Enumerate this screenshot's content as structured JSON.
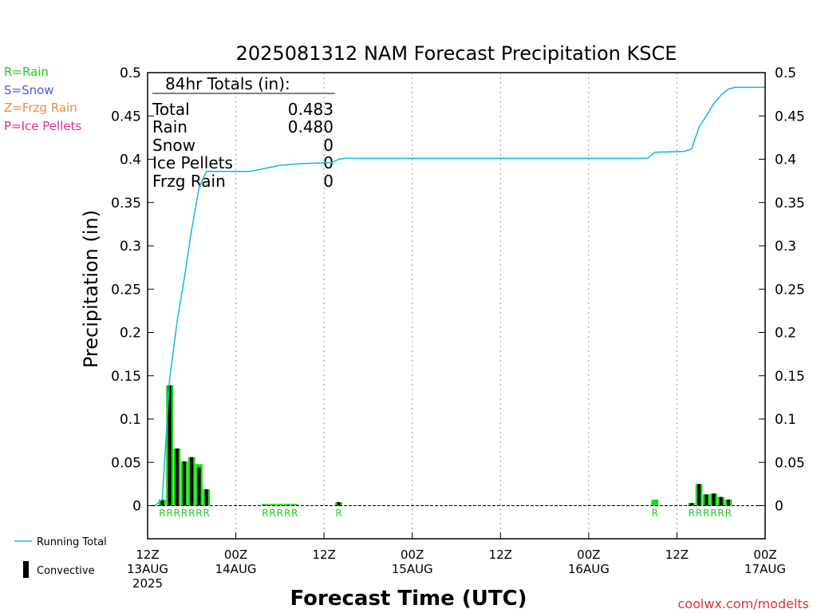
{
  "chart_data": {
    "type": "bar",
    "title": "2025081312 NAM Forecast Precipitation KSCE",
    "ylabel": "Precipitation  (in)",
    "xlabel": "Forecast Time (UTC)",
    "ylim": [
      0,
      0.5
    ],
    "yticks": [
      "0",
      "0.05",
      "0.1",
      "0.15",
      "0.2",
      "0.25",
      "0.3",
      "0.35",
      "0.4",
      "0.45",
      "0.5"
    ],
    "xlim_hours": [
      0,
      84
    ],
    "xticks": [
      {
        "h": 0,
        "lines": [
          "12Z",
          "13AUG",
          "2025"
        ]
      },
      {
        "h": 12,
        "lines": [
          "00Z",
          "14AUG"
        ]
      },
      {
        "h": 24,
        "lines": [
          "12Z"
        ]
      },
      {
        "h": 36,
        "lines": [
          "00Z",
          "15AUG"
        ]
      },
      {
        "h": 48,
        "lines": [
          "12Z"
        ]
      },
      {
        "h": 60,
        "lines": [
          "00Z",
          "16AUG"
        ]
      },
      {
        "h": 72,
        "lines": [
          "12Z"
        ]
      },
      {
        "h": 84,
        "lines": [
          "00Z",
          "17AUG"
        ]
      }
    ],
    "grid_vertical_dotted": true,
    "legend_top_left": [
      {
        "label": "R=Rain",
        "color": "#22cc22"
      },
      {
        "label": "S=Snow",
        "color": "#4a5ae8"
      },
      {
        "label": "Z=Frzg Rain",
        "color": "#ee8a3a"
      },
      {
        "label": "P=Ice Pellets",
        "color": "#e52c8c"
      }
    ],
    "totals_box": {
      "header": "84hr Totals (in):",
      "rows": [
        {
          "label": "Total",
          "value": "0.483"
        },
        {
          "label": "Rain",
          "value": "0.480"
        },
        {
          "label": "Snow",
          "value": "0"
        },
        {
          "label": "Ice Pellets",
          "value": "0"
        },
        {
          "label": "Frzg Rain",
          "value": "0"
        }
      ]
    },
    "series": [
      {
        "name": "Rain",
        "color": "#11dd11",
        "bars": [
          {
            "h": 2,
            "value": 0.007
          },
          {
            "h": 3,
            "value": 0.139
          },
          {
            "h": 4,
            "value": 0.066
          },
          {
            "h": 5,
            "value": 0.051
          },
          {
            "h": 6,
            "value": 0.056
          },
          {
            "h": 7,
            "value": 0.048
          },
          {
            "h": 8,
            "value": 0.019
          },
          {
            "h": 16,
            "value": 0.002
          },
          {
            "h": 17,
            "value": 0.002
          },
          {
            "h": 18,
            "value": 0.002
          },
          {
            "h": 19,
            "value": 0.002
          },
          {
            "h": 20,
            "value": 0.002
          },
          {
            "h": 26,
            "value": 0.004
          },
          {
            "h": 69,
            "value": 0.007
          },
          {
            "h": 74,
            "value": 0.003
          },
          {
            "h": 75,
            "value": 0.025
          },
          {
            "h": 76,
            "value": 0.013
          },
          {
            "h": 77,
            "value": 0.014
          },
          {
            "h": 78,
            "value": 0.01
          },
          {
            "h": 79,
            "value": 0.007
          }
        ]
      },
      {
        "name": "Convective",
        "color": "#000000",
        "bars": [
          {
            "h": 2,
            "value": 0.006
          },
          {
            "h": 3,
            "value": 0.139
          },
          {
            "h": 4,
            "value": 0.066
          },
          {
            "h": 5,
            "value": 0.051
          },
          {
            "h": 6,
            "value": 0.056
          },
          {
            "h": 7,
            "value": 0.044
          },
          {
            "h": 8,
            "value": 0.019
          },
          {
            "h": 26,
            "value": 0.004
          },
          {
            "h": 74,
            "value": 0.003
          },
          {
            "h": 75,
            "value": 0.025
          },
          {
            "h": 76,
            "value": 0.013
          },
          {
            "h": 77,
            "value": 0.014
          },
          {
            "h": 78,
            "value": 0.01
          },
          {
            "h": 79,
            "value": 0.007
          }
        ]
      },
      {
        "name": "Running Total",
        "color": "#11bbcc",
        "points": [
          [
            1,
            0.0
          ],
          [
            2,
            0.007
          ],
          [
            3,
            0.146
          ],
          [
            4,
            0.212
          ],
          [
            5,
            0.263
          ],
          [
            6,
            0.319
          ],
          [
            7,
            0.367
          ],
          [
            8,
            0.386
          ],
          [
            12,
            0.386
          ],
          [
            14,
            0.386
          ],
          [
            18,
            0.393
          ],
          [
            21,
            0.395
          ],
          [
            25,
            0.396
          ],
          [
            26,
            0.4
          ],
          [
            27,
            0.401
          ],
          [
            68,
            0.401
          ],
          [
            69,
            0.408
          ],
          [
            73,
            0.409
          ],
          [
            74,
            0.412
          ],
          [
            75,
            0.437
          ],
          [
            76,
            0.45
          ],
          [
            77,
            0.464
          ],
          [
            78,
            0.474
          ],
          [
            79,
            0.481
          ],
          [
            80,
            0.483
          ],
          [
            84,
            0.483
          ]
        ]
      }
    ],
    "ptype_labels": [
      {
        "h": 2,
        "text": "R"
      },
      {
        "h": 3,
        "text": "R"
      },
      {
        "h": 4,
        "text": "R"
      },
      {
        "h": 5,
        "text": "R"
      },
      {
        "h": 6,
        "text": "R"
      },
      {
        "h": 7,
        "text": "R"
      },
      {
        "h": 8,
        "text": "R"
      },
      {
        "h": 16,
        "text": "R"
      },
      {
        "h": 17,
        "text": "R"
      },
      {
        "h": 18,
        "text": "R"
      },
      {
        "h": 19,
        "text": "R"
      },
      {
        "h": 20,
        "text": "R"
      },
      {
        "h": 26,
        "text": "R"
      },
      {
        "h": 69,
        "text": "R"
      },
      {
        "h": 74,
        "text": "R"
      },
      {
        "h": 75,
        "text": "R"
      },
      {
        "h": 76,
        "text": "R"
      },
      {
        "h": 77,
        "text": "R"
      },
      {
        "h": 78,
        "text": "R"
      },
      {
        "h": 79,
        "text": "R"
      }
    ],
    "legend_bottom_left": [
      {
        "label": "Running Total",
        "kind": "line",
        "color": "#11bbcc"
      },
      {
        "label": "Convective",
        "kind": "bar",
        "color": "#000000"
      }
    ],
    "credit": "coolwx.com/modelts"
  }
}
